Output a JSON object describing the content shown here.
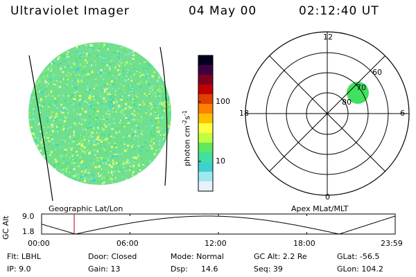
{
  "header": {
    "title": "Ultraviolet Imager",
    "date": "04 May 00",
    "time": "02:12:40 UT"
  },
  "image_panel": {
    "caption": "Geographic Lat/Lon"
  },
  "colorbar": {
    "unit_text": "photon cm",
    "unit_sup1": "-2",
    "unit_mid": "s",
    "unit_sup2": "-1",
    "tick_100": "100",
    "tick_10": "10",
    "colors": [
      "#000020",
      "#400040",
      "#800020",
      "#c00000",
      "#e04000",
      "#ff8000",
      "#ffc000",
      "#ffff40",
      "#c0ff40",
      "#60e860",
      "#40e0a0",
      "#40d0d0",
      "#a0e8f0",
      "#e8f0f8"
    ]
  },
  "polar_panel": {
    "caption": "Apex MLat/MLT",
    "mlt_12": "12",
    "mlt_18": "18",
    "mlt_6": "6",
    "mlt_0": "0",
    "lat_60": "60",
    "lat_70": "70",
    "lat_80": "80",
    "spot_color": "#40e060"
  },
  "altitude_plot": {
    "ylabel": "GC Alt",
    "y_top": "9.0",
    "y_bottom": "1.8",
    "x_ticks": [
      "00:00",
      "06:00",
      "12:00",
      "18:00",
      "23:59"
    ],
    "marker_time_hours": 2.21,
    "marker_color": "#c00000"
  },
  "info": {
    "row1": {
      "flt": "Flt: LBHL",
      "door": "Door: Closed",
      "mode": "Mode: Normal",
      "gcalt": "GC Alt: 2.2 Re",
      "glat": "GLat: -56.5"
    },
    "row2": {
      "ip": "IP: 9.0",
      "gain": "Gain: 13",
      "dsp": "Dsp:",
      "dsp_val": "14.6",
      "seq": "Seq: 39",
      "glon": "GLon: 104.2"
    }
  }
}
